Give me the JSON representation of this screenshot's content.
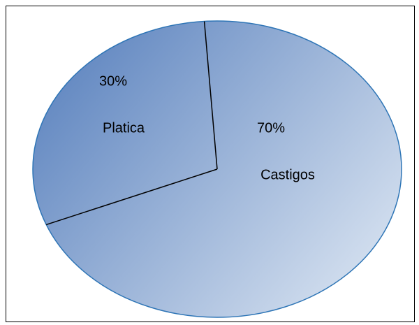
{
  "chart_data": {
    "type": "pie",
    "categories": [
      "Platica",
      "Castigos"
    ],
    "values": [
      30,
      70
    ],
    "value_labels": [
      "30%",
      "70%"
    ]
  }
}
